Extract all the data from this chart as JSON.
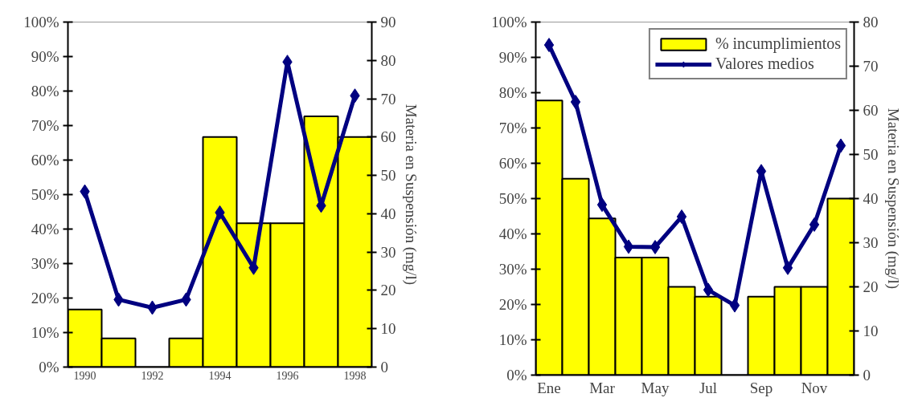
{
  "chart_data": [
    {
      "type": "bar",
      "categories": [
        "1990",
        null,
        "1992",
        null,
        "1994",
        null,
        "1996",
        null,
        "1998"
      ],
      "series": [
        {
          "color": "#ffff00",
          "values": [
            16.7,
            8.3,
            0,
            8.3,
            66.7,
            41.7,
            41.7,
            72.7,
            66.7
          ]
        },
        {
          "type": "line",
          "axis": "y2",
          "color": "#000080",
          "values": [
            45.8,
            17.6,
            15.5,
            17.6,
            40.3,
            25.9,
            79.6,
            42.1,
            70.8
          ]
        }
      ],
      "ylim": [
        0,
        100
      ],
      "yticks": [
        {
          "value": 0,
          "label": "0%"
        },
        {
          "value": 10,
          "label": "10%"
        },
        {
          "value": 20,
          "label": "20%"
        },
        {
          "value": 30,
          "label": "30%"
        },
        {
          "value": 40,
          "label": "40%"
        },
        {
          "value": 50,
          "label": "50%"
        },
        {
          "value": 60,
          "label": "60%"
        },
        {
          "value": 70,
          "label": "70%"
        },
        {
          "value": 80,
          "label": "80%"
        },
        {
          "value": 90,
          "label": "90%"
        },
        {
          "value": 100,
          "label": "100%"
        }
      ],
      "y2lim": [
        0,
        90
      ],
      "y2ticks": [
        0,
        10,
        20,
        30,
        40,
        50,
        60,
        70,
        80,
        90
      ],
      "y2label": "Materia en Suspensión (mg/l)",
      "marker": "diamond",
      "grid": false,
      "legend": false
    },
    {
      "type": "bar",
      "categories": [
        "Ene",
        null,
        "Mar",
        null,
        "May",
        null,
        "Jul",
        null,
        "Sep",
        null,
        "Nov",
        null
      ],
      "series": [
        {
          "name": "% incumplimientos",
          "color": "#ffff00",
          "values": [
            77.8,
            55.6,
            44.4,
            33.3,
            33.3,
            25,
            22.2,
            0,
            22.2,
            25,
            25,
            50
          ]
        },
        {
          "type": "line",
          "axis": "y2",
          "name": "Valores medios",
          "color": "#000080",
          "values": [
            74.8,
            61.9,
            38.6,
            29.1,
            29.0,
            35.9,
            19.3,
            15.8,
            46.2,
            24.3,
            34.1,
            52.0
          ]
        }
      ],
      "ylim": [
        0,
        100
      ],
      "yticks": [
        {
          "value": 0,
          "label": "0%"
        },
        {
          "value": 10,
          "label": "10%"
        },
        {
          "value": 20,
          "label": "20%"
        },
        {
          "value": 30,
          "label": "30%"
        },
        {
          "value": 40,
          "label": "40%"
        },
        {
          "value": 50,
          "label": "50%"
        },
        {
          "value": 60,
          "label": "60%"
        },
        {
          "value": 70,
          "label": "70%"
        },
        {
          "value": 80,
          "label": "80%"
        },
        {
          "value": 90,
          "label": "90%"
        },
        {
          "value": 100,
          "label": "100%"
        }
      ],
      "y2lim": [
        0,
        80
      ],
      "y2ticks": [
        0,
        10,
        20,
        30,
        40,
        50,
        60,
        70,
        80
      ],
      "y2label": "Materia en Suspensión (mg/l)",
      "marker": "diamond",
      "grid": false,
      "legend": "top right"
    }
  ]
}
